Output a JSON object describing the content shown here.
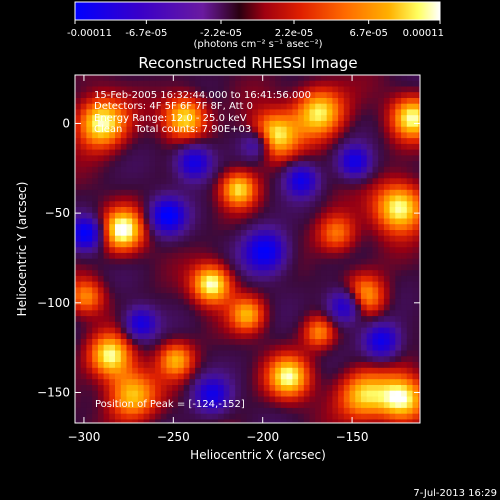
{
  "colorbar": {
    "tick_labels": [
      "-0.00011",
      "-6.7e-05",
      "-2.2e-05",
      "2.2e-05",
      "6.7e-05",
      "0.00011"
    ],
    "tick_values": [
      -0.00011,
      -6.7e-05,
      -2.2e-05,
      2.2e-05,
      6.7e-05,
      0.00011
    ],
    "range": [
      -0.00011,
      0.00011
    ],
    "units_label": "(photons cm⁻² s⁻¹ asec⁻²)",
    "colors": [
      "#0000ff",
      "#3a00c8",
      "#6a1aa0",
      "#b00020",
      "#e02000",
      "#ff6a00",
      "#ffb000",
      "#ffff80",
      "#ffffff"
    ]
  },
  "chart_data": {
    "type": "heatmap",
    "title": "Reconstructed RHESSI Image",
    "xlabel": "Heliocentric X (arcsec)",
    "ylabel": "Heliocentric Y (arcsec)",
    "xlim": [
      -305,
      -112
    ],
    "ylim": [
      -167,
      27
    ],
    "x_ticks": [
      -300,
      -250,
      -200,
      -150
    ],
    "y_ticks": [
      0,
      -50,
      -100,
      -150
    ],
    "annotations": [
      "15-Feb-2005 16:32:44.000 to 16:41:56.000",
      "Detectors: 4F 5F 6F 7F 8F, Att 0",
      "Energy Range: 12.0 - 25.0 keV",
      "Clean    Total counts: 7.90E+03"
    ],
    "peak_label": "Position of Peak = [-124,-152]",
    "peak": {
      "x": -124,
      "y": -152
    }
  },
  "footer": {
    "timestamp": "7-Jul-2013 16:29"
  }
}
